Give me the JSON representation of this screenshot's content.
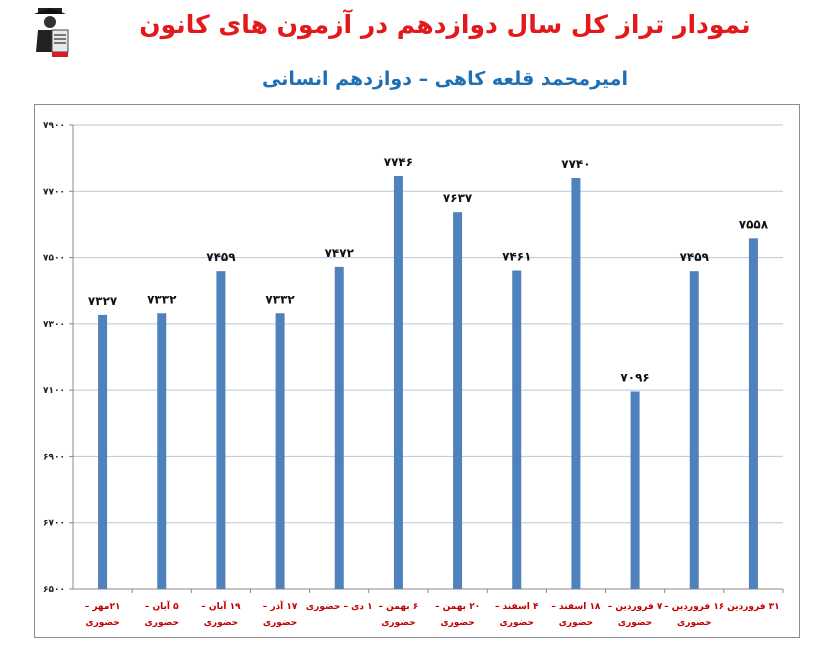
{
  "header": {
    "title": "نمودار تراز کل سال دوازدهم در آزمون های کانون",
    "subtitle": "امیرمحمد قلعه کاهی – دوازدهم انسانی",
    "logo_icon": "kanoon-logo-icon"
  },
  "colors": {
    "title": "#e3191c",
    "subtitle": "#1f6fb5",
    "bar": "#4f81bd",
    "category_text": "#c00000",
    "grid": "#b8c7dc"
  },
  "chart_data": {
    "type": "bar",
    "ylim": [
      6500,
      7900
    ],
    "yticks": [
      6500,
      6700,
      6900,
      7100,
      7300,
      7500,
      7700,
      7900
    ],
    "ytick_labels": [
      "۶۵۰۰",
      "۶۷۰۰",
      "۶۹۰۰",
      "۷۱۰۰",
      "۷۳۰۰",
      "۷۵۰۰",
      "۷۷۰۰",
      "۷۹۰۰"
    ],
    "grid": true,
    "categories": [
      [
        "۲۱مهر –",
        "حضوری"
      ],
      [
        "۵ آبان –",
        "حضوری"
      ],
      [
        "۱۹ آبان –",
        "حضوری"
      ],
      [
        "۱۷ آذر –",
        "حضوری"
      ],
      [
        "۱ دی – حضوری"
      ],
      [
        "۶ بهمن –",
        "حضوری"
      ],
      [
        "۲۰ بهمن –",
        "حضوری"
      ],
      [
        "۴ اسفند –",
        "حضوری"
      ],
      [
        "۱۸ اسفند –",
        "حضوری"
      ],
      [
        "۷ فروردین –",
        "حضوری"
      ],
      [
        "۱۶ فروردین –",
        "حضوری"
      ],
      [
        "۳۱ فروردین"
      ]
    ],
    "values": [
      7327,
      7332,
      7459,
      7332,
      7472,
      7746,
      7637,
      7461,
      7740,
      7096,
      7459,
      7558
    ],
    "value_labels": [
      "۷۳۲۷",
      "۷۳۳۲",
      "۷۴۵۹",
      "۷۳۳۲",
      "۷۴۷۲",
      "۷۷۴۶",
      "۷۶۳۷",
      "۷۴۶۱",
      "۷۷۴۰",
      "۷۰۹۶",
      "۷۴۵۹",
      "۷۵۵۸"
    ]
  }
}
